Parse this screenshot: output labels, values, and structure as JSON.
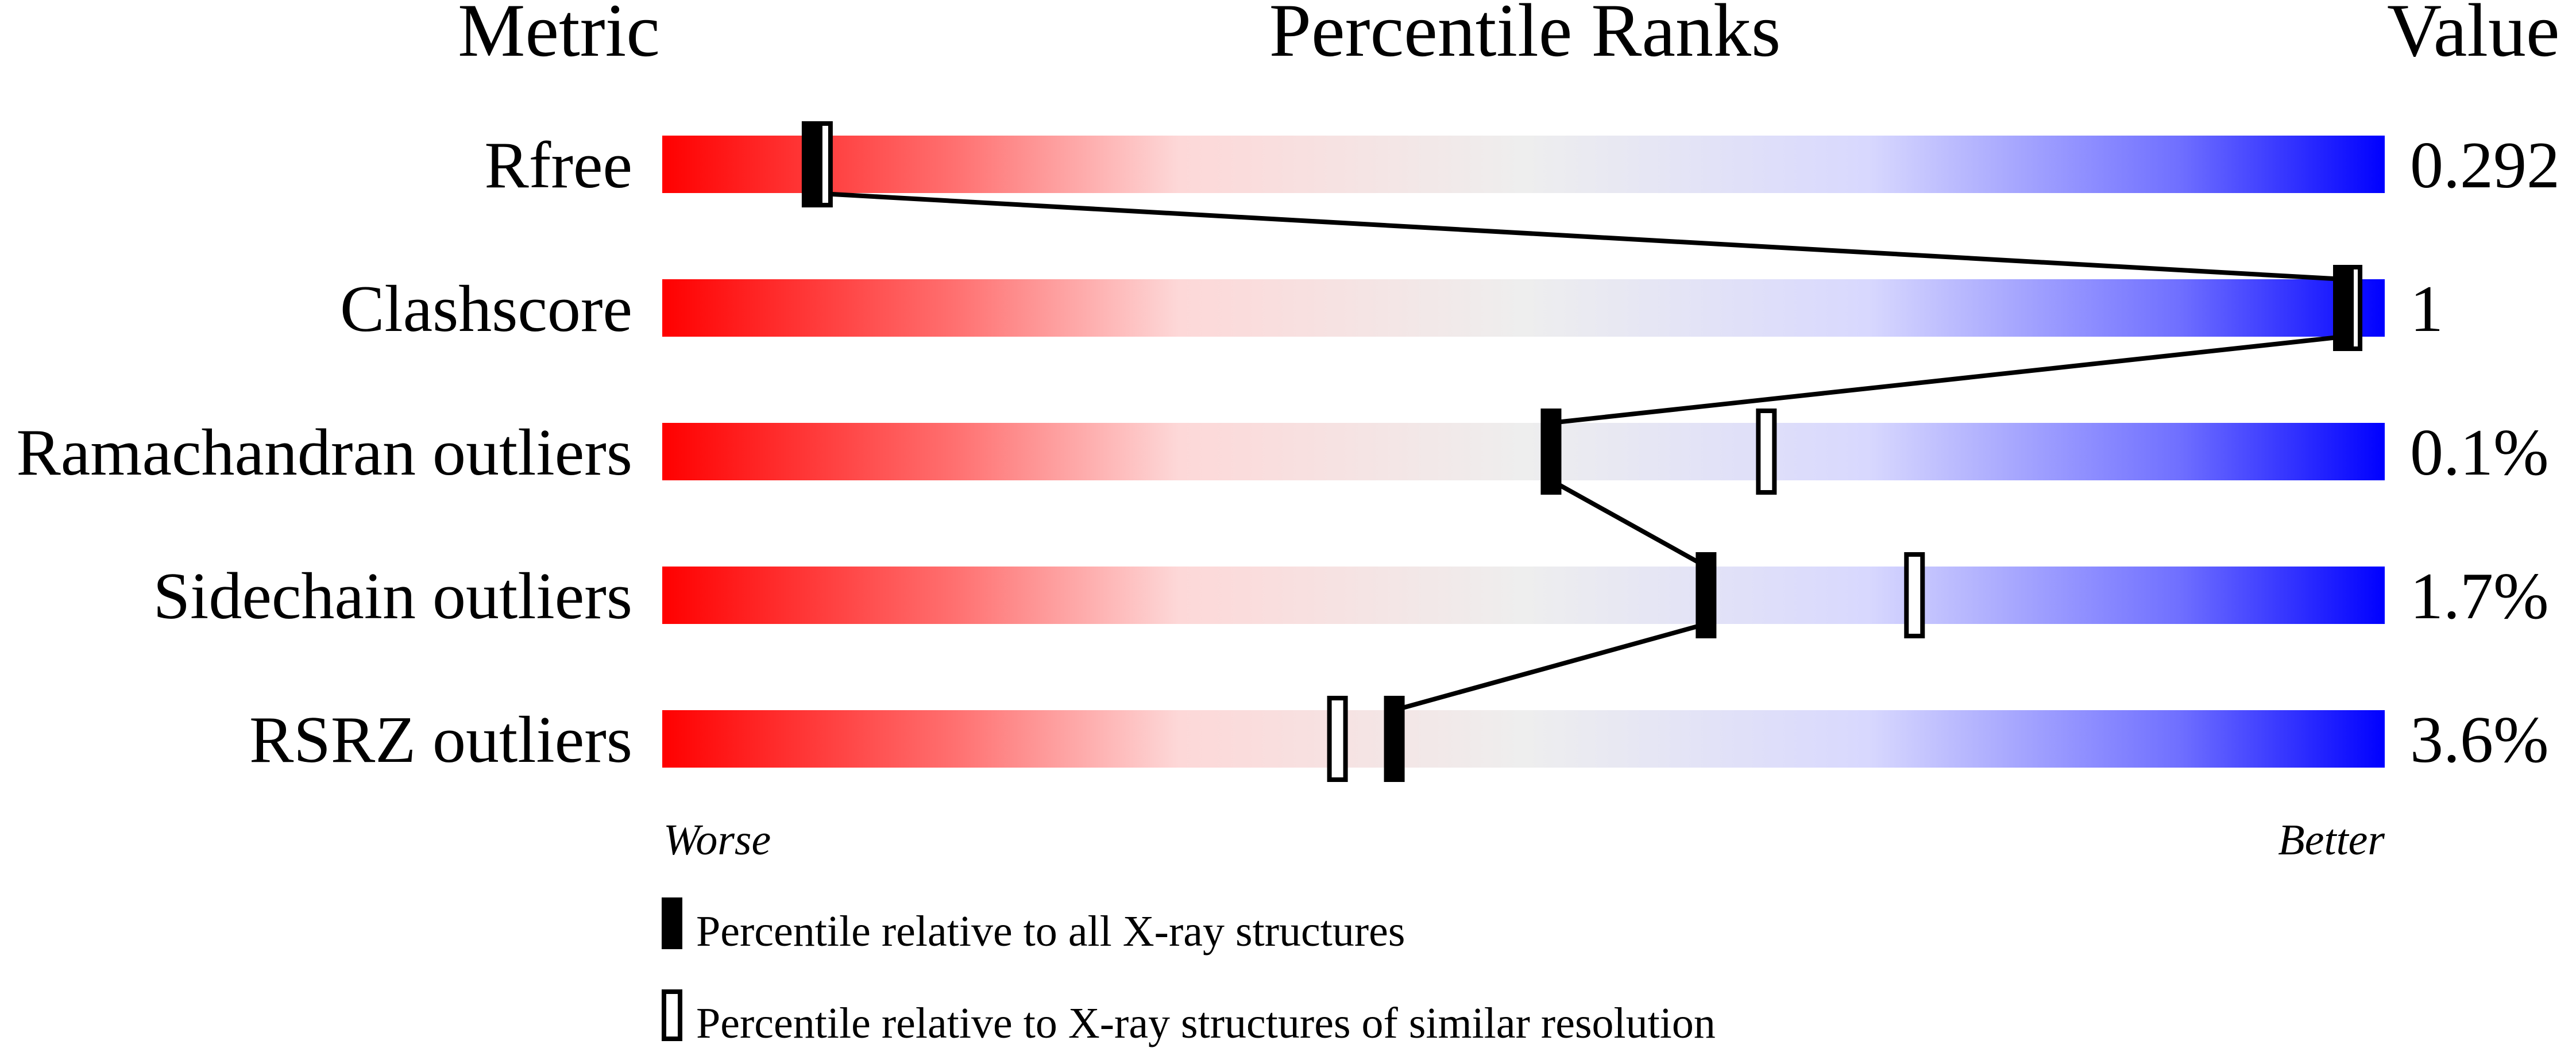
{
  "chart_data": {
    "type": "percentile-slider",
    "headers": {
      "metric": "Metric",
      "ranks": "Percentile Ranks",
      "value": "Value"
    },
    "xlim": [
      0,
      100
    ],
    "axis_labels": {
      "worse": "Worse",
      "better": "Better"
    },
    "gradient_colors": [
      "#ff0000",
      "#ff7070",
      "#fdd8d8",
      "#eeeeee",
      "#d8d8fe",
      "#7070ff",
      "#0000ff"
    ],
    "metrics": [
      {
        "name": "Rfree",
        "value": "0.292",
        "percentile_all": 8.7,
        "percentile_similar": 9.3
      },
      {
        "name": "Clashscore",
        "value": "1",
        "percentile_all": 97.6,
        "percentile_similar": 98.1
      },
      {
        "name": "Ramachandran outliers",
        "value": "0.1%",
        "percentile_all": 51.6,
        "percentile_similar": 64.1
      },
      {
        "name": "Sidechain outliers",
        "value": "1.7%",
        "percentile_all": 60.6,
        "percentile_similar": 72.7
      },
      {
        "name": "RSRZ outliers",
        "value": "3.6%",
        "percentile_all": 42.5,
        "percentile_similar": 39.2
      }
    ],
    "legend": [
      {
        "marker": "filled",
        "label": "Percentile relative to all X-ray structures"
      },
      {
        "marker": "open",
        "label": "Percentile relative to X-ray structures of similar resolution"
      }
    ]
  }
}
